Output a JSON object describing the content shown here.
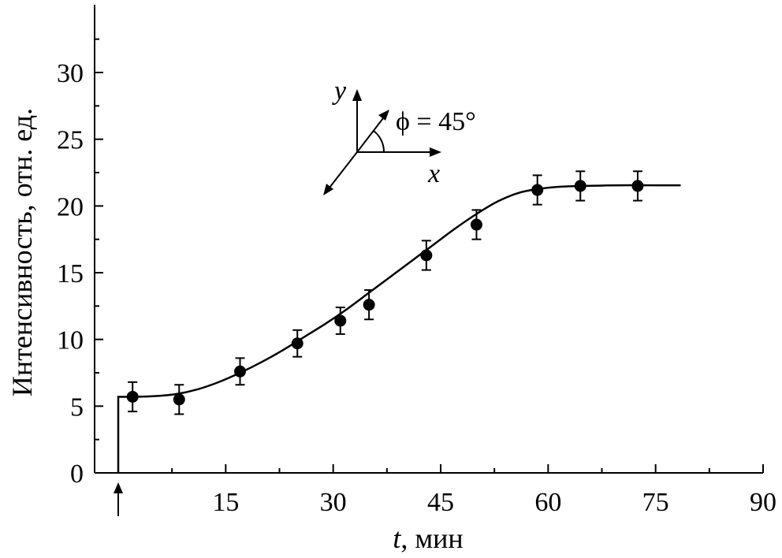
{
  "chart_data": {
    "type": "scatter",
    "xlabel_var": "t",
    "xlabel_unit": ", мин",
    "ylabel": "Интенсивность, отн. ед.",
    "xlim": [
      0,
      90
    ],
    "ylim": [
      0,
      35
    ],
    "xticks": [
      15,
      30,
      45,
      60,
      75,
      90
    ],
    "yticks": [
      0,
      5,
      10,
      15,
      20,
      25,
      30
    ],
    "grid": false,
    "series": [
      {
        "marker": "filled-circle",
        "color": "#000000",
        "points": [
          {
            "x": 2,
            "y": 5.7,
            "err": 1.1
          },
          {
            "x": 8.5,
            "y": 5.5,
            "err": 1.1
          },
          {
            "x": 17,
            "y": 7.6,
            "err": 1.0
          },
          {
            "x": 25,
            "y": 9.7,
            "err": 1.0
          },
          {
            "x": 31,
            "y": 11.4,
            "err": 1.0
          },
          {
            "x": 35,
            "y": 12.6,
            "err": 1.1
          },
          {
            "x": 43,
            "y": 16.3,
            "err": 1.1
          },
          {
            "x": 50,
            "y": 18.6,
            "err": 1.1
          },
          {
            "x": 58.5,
            "y": 21.2,
            "err": 1.1
          },
          {
            "x": 64.5,
            "y": 21.5,
            "err": 1.1
          },
          {
            "x": 72.5,
            "y": 21.5,
            "err": 1.1
          }
        ]
      }
    ],
    "fit_curve": [
      [
        0,
        0
      ],
      [
        0,
        5.7
      ],
      [
        2,
        5.7
      ],
      [
        5,
        5.75
      ],
      [
        8,
        5.9
      ],
      [
        11,
        6.25
      ],
      [
        14,
        6.8
      ],
      [
        17,
        7.5
      ],
      [
        20,
        8.3
      ],
      [
        23,
        9.2
      ],
      [
        26,
        10.2
      ],
      [
        29,
        11.2
      ],
      [
        32,
        12.3
      ],
      [
        35,
        13.5
      ],
      [
        38,
        14.7
      ],
      [
        41,
        15.9
      ],
      [
        44,
        17.1
      ],
      [
        47,
        18.3
      ],
      [
        50,
        19.4
      ],
      [
        53,
        20.35
      ],
      [
        56,
        21.0
      ],
      [
        59,
        21.3
      ],
      [
        62,
        21.45
      ],
      [
        65,
        21.5
      ],
      [
        70,
        21.55
      ],
      [
        75,
        21.55
      ],
      [
        78.5,
        21.55
      ]
    ],
    "start_marker_x": 0,
    "annotation": {
      "y_axis_label": "y",
      "x_axis_label": "x",
      "angle_label": "ϕ = 45°"
    }
  }
}
